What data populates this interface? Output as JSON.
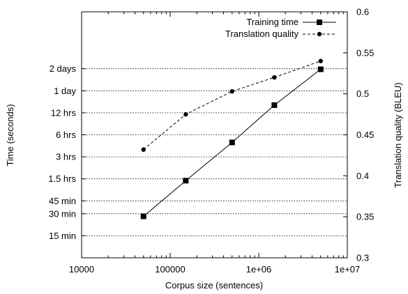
{
  "chart_data": {
    "type": "line",
    "title": "",
    "xlabel": "Corpus size (sentences)",
    "ylabel_left": "Time (seconds)",
    "ylabel_right": "Translation quality (BLEU)",
    "x_scale": "log",
    "xlim": [
      10000,
      10000000
    ],
    "x_ticks": [
      {
        "value": 10000,
        "label": "10000"
      },
      {
        "value": 100000,
        "label": "100000"
      },
      {
        "value": 1000000,
        "label": "1e+06"
      },
      {
        "value": 10000000,
        "label": "1e+07"
      }
    ],
    "y_left_scale": "log",
    "y_left_unit": "seconds",
    "y_left_lim": [
      450,
      1036800
    ],
    "y_left_ticks": [
      {
        "value": 900,
        "label": "15 min"
      },
      {
        "value": 1800,
        "label": "30 min"
      },
      {
        "value": 2700,
        "label": "45 min"
      },
      {
        "value": 5400,
        "label": "1.5 hrs"
      },
      {
        "value": 10800,
        "label": "3 hrs"
      },
      {
        "value": 21600,
        "label": "6 hrs"
      },
      {
        "value": 43200,
        "label": "12 hrs"
      },
      {
        "value": 86400,
        "label": "1 day"
      },
      {
        "value": 172800,
        "label": "2 days"
      }
    ],
    "y_right_scale": "linear",
    "y_right_lim": [
      0.3,
      0.6
    ],
    "y_right_ticks": [
      {
        "value": 0.3,
        "label": "0.3"
      },
      {
        "value": 0.35,
        "label": "0.35"
      },
      {
        "value": 0.4,
        "label": "0.4"
      },
      {
        "value": 0.45,
        "label": "0.45"
      },
      {
        "value": 0.5,
        "label": "0.5"
      },
      {
        "value": 0.55,
        "label": "0.55"
      },
      {
        "value": 0.6,
        "label": "0.6"
      }
    ],
    "grid": "horizontal-at-left-ticks",
    "legend_position": "top-right",
    "series": [
      {
        "name": "Training time",
        "axis": "left",
        "line": "solid",
        "marker": "square",
        "x": [
          50000,
          150000,
          500000,
          1500000,
          5000000
        ],
        "y": [
          1660,
          5100,
          17000,
          55000,
          170000
        ]
      },
      {
        "name": "Translation quality",
        "axis": "right",
        "line": "dashed",
        "marker": "circle",
        "x": [
          50000,
          150000,
          500000,
          1500000,
          5000000
        ],
        "y": [
          0.432,
          0.475,
          0.503,
          0.52,
          0.54
        ]
      }
    ]
  }
}
